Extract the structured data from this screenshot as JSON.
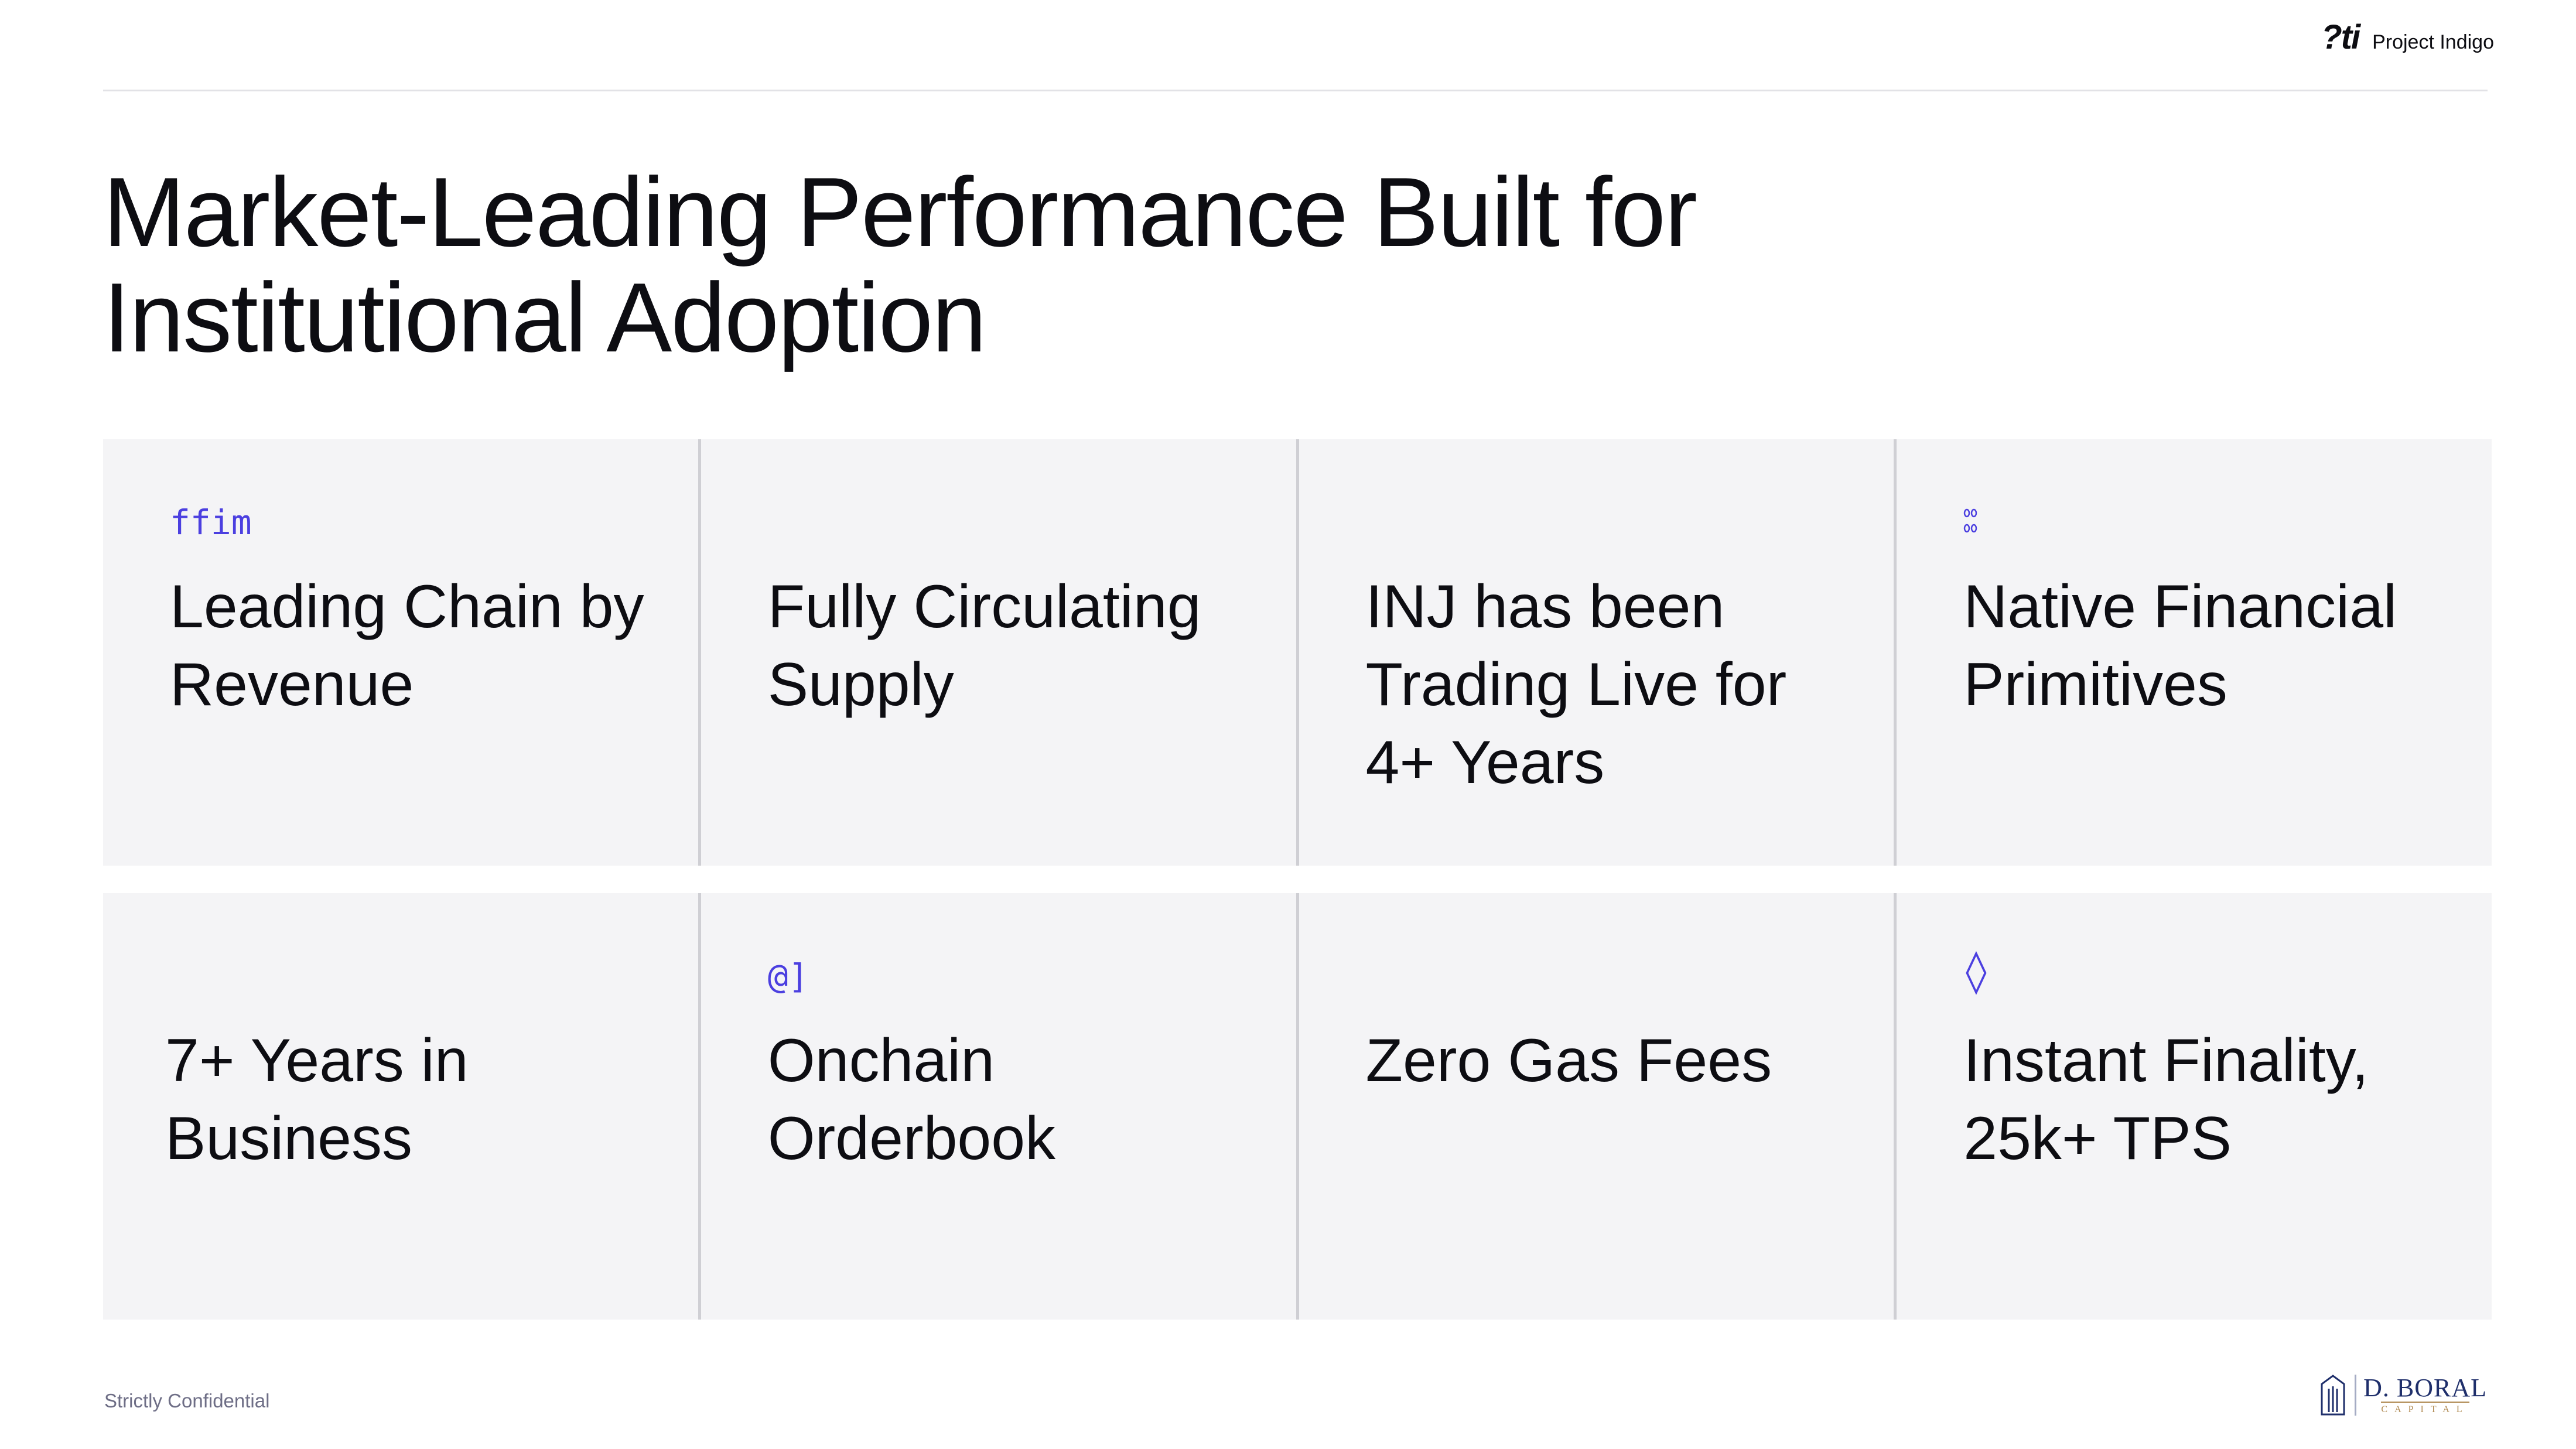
{
  "header": {
    "brand_mark": "?ti",
    "brand_name": "Project Indigo"
  },
  "title": "Market-Leading Performance Built for Institutional Adoption",
  "cards_row_1": [
    {
      "icon": "ffim",
      "icon_name": "revenue-icon",
      "text": "Leading Chain by Revenue"
    },
    {
      "icon": "",
      "icon_name": "",
      "text": "Fully Circulating Supply"
    },
    {
      "icon": "",
      "icon_name": "",
      "text": "INJ has been Trading Live for 4+ Years"
    },
    {
      "icon": "⁰⁰\n⁰⁰",
      "icon_name": "grid-icon",
      "text": "Native Financial Primitives"
    }
  ],
  "cards_row_2": [
    {
      "icon": "",
      "icon_name": "",
      "text": "7+ Years in Business"
    },
    {
      "icon": "@]",
      "icon_name": "orderbook-icon",
      "text": "Onchain Orderbook"
    },
    {
      "icon": "",
      "icon_name": "",
      "text": "Zero Gas Fees"
    },
    {
      "icon": "◊",
      "icon_name": "diamond-icon",
      "text": "Instant Finality, 25k+ TPS"
    }
  ],
  "footer": {
    "confidential": "Strictly Confidential",
    "logo_main": "D. BORAL",
    "logo_sub": "CAPITAL"
  },
  "colors": {
    "accent": "#4b3fe0",
    "card_bg": "#f4f4f6",
    "logo_navy": "#1f2f6b",
    "logo_gold": "#b08a52"
  }
}
